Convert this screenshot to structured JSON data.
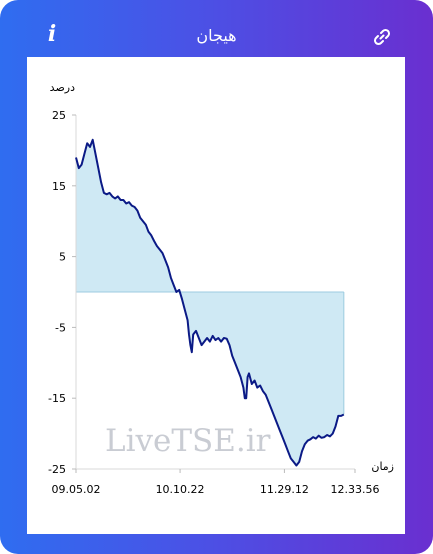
{
  "header": {
    "title": "هیجان",
    "info_glyph": "i",
    "info_icon": "info-icon",
    "link_icon": "link-icon"
  },
  "colors": {
    "gradient_start": "#2f6df0",
    "gradient_end": "#6a2fd0",
    "line": "#0b1a86",
    "fill": "#cfe9f4"
  },
  "watermark": "LiveTSE.ir",
  "chart_data": {
    "type": "area",
    "ylabel": "درصد",
    "xlabel": "زمان",
    "ylim": [
      -25,
      25
    ],
    "y_ticks": [
      "25",
      "15",
      "5",
      "-5",
      "-15",
      "-25"
    ],
    "x_ticks": [
      "09.05.02",
      "10.10.22",
      "11.29.12",
      "12.33.56"
    ],
    "grid": false,
    "baseline": 0,
    "series": [
      {
        "values": [
          [
            0.0,
            19
          ],
          [
            0.01,
            17.5
          ],
          [
            0.02,
            18
          ],
          [
            0.03,
            19.5
          ],
          [
            0.04,
            21
          ],
          [
            0.05,
            20.5
          ],
          [
            0.06,
            21.5
          ],
          [
            0.07,
            19.5
          ],
          [
            0.08,
            17.5
          ],
          [
            0.09,
            15.5
          ],
          [
            0.1,
            14
          ],
          [
            0.11,
            13.8
          ],
          [
            0.12,
            14
          ],
          [
            0.13,
            13.5
          ],
          [
            0.14,
            13.2
          ],
          [
            0.15,
            13.5
          ],
          [
            0.16,
            13
          ],
          [
            0.17,
            13
          ],
          [
            0.18,
            12.5
          ],
          [
            0.19,
            12.7
          ],
          [
            0.2,
            12.2
          ],
          [
            0.21,
            12
          ],
          [
            0.22,
            11.5
          ],
          [
            0.23,
            10.5
          ],
          [
            0.24,
            10
          ],
          [
            0.25,
            9.5
          ],
          [
            0.26,
            8.5
          ],
          [
            0.27,
            8
          ],
          [
            0.28,
            7.2
          ],
          [
            0.29,
            6.5
          ],
          [
            0.3,
            6
          ],
          [
            0.31,
            5.5
          ],
          [
            0.32,
            4.5
          ],
          [
            0.33,
            3.5
          ],
          [
            0.34,
            2
          ],
          [
            0.35,
            1
          ],
          [
            0.36,
            0
          ],
          [
            0.37,
            0.3
          ],
          [
            0.38,
            -1
          ],
          [
            0.39,
            -2.5
          ],
          [
            0.4,
            -4
          ],
          [
            0.405,
            -6
          ],
          [
            0.41,
            -7.5
          ],
          [
            0.415,
            -8.5
          ],
          [
            0.42,
            -6
          ],
          [
            0.43,
            -5.5
          ],
          [
            0.44,
            -6.5
          ],
          [
            0.45,
            -7.5
          ],
          [
            0.46,
            -7
          ],
          [
            0.47,
            -6.5
          ],
          [
            0.48,
            -7
          ],
          [
            0.49,
            -6.2
          ],
          [
            0.5,
            -6.8
          ],
          [
            0.51,
            -6.5
          ],
          [
            0.52,
            -7
          ],
          [
            0.53,
            -6.5
          ],
          [
            0.54,
            -6.6
          ],
          [
            0.55,
            -7.5
          ],
          [
            0.56,
            -9
          ],
          [
            0.57,
            -10
          ],
          [
            0.58,
            -11
          ],
          [
            0.59,
            -12
          ],
          [
            0.6,
            -13.5
          ],
          [
            0.605,
            -15
          ],
          [
            0.61,
            -15
          ],
          [
            0.615,
            -12
          ],
          [
            0.62,
            -11.5
          ],
          [
            0.63,
            -13
          ],
          [
            0.64,
            -12.5
          ],
          [
            0.65,
            -13.5
          ],
          [
            0.66,
            -13.2
          ],
          [
            0.67,
            -14
          ],
          [
            0.68,
            -14.5
          ],
          [
            0.69,
            -15.5
          ],
          [
            0.7,
            -16.5
          ],
          [
            0.71,
            -17.5
          ],
          [
            0.72,
            -18.5
          ],
          [
            0.73,
            -19.5
          ],
          [
            0.74,
            -20.5
          ],
          [
            0.75,
            -21.5
          ],
          [
            0.76,
            -22.5
          ],
          [
            0.77,
            -23.5
          ],
          [
            0.78,
            -24
          ],
          [
            0.79,
            -24.5
          ],
          [
            0.8,
            -24
          ],
          [
            0.81,
            -22.5
          ],
          [
            0.82,
            -21.5
          ],
          [
            0.83,
            -21
          ],
          [
            0.84,
            -20.8
          ],
          [
            0.85,
            -20.5
          ],
          [
            0.86,
            -20.7
          ],
          [
            0.87,
            -20.3
          ],
          [
            0.88,
            -20.6
          ],
          [
            0.89,
            -20.5
          ],
          [
            0.9,
            -20.2
          ],
          [
            0.91,
            -20.4
          ],
          [
            0.92,
            -20
          ],
          [
            0.93,
            -19
          ],
          [
            0.94,
            -17.5
          ],
          [
            0.95,
            -17.5
          ],
          [
            0.96,
            -17.3
          ]
        ]
      }
    ]
  }
}
